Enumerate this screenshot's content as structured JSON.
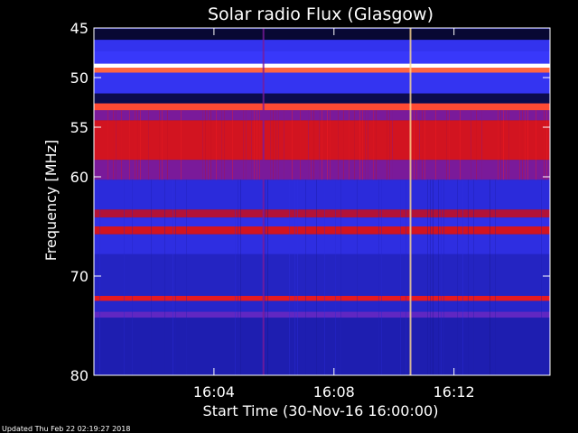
{
  "chart_data": {
    "type": "heatmap",
    "title": "Solar radio Flux (Glasgow)",
    "xlabel": "Start Time (30-Nov-16 16:00:00)",
    "ylabel": "Frequency [MHz]",
    "footer": "Updated Thu Feb 22 02:19:27 2018",
    "x_ticks": [
      "16:04",
      "16:08",
      "16:12"
    ],
    "x_tick_minutes": [
      4,
      8,
      12
    ],
    "xlim_minutes": [
      0,
      15.2
    ],
    "y_ticks": [
      45,
      50,
      55,
      60,
      70,
      80
    ],
    "ylim": [
      80,
      45
    ],
    "colormap": [
      "#000000",
      "#1a1aa0",
      "#2a2ad8",
      "#3a3aff",
      "#7a1a9a",
      "#c01020",
      "#ff2020",
      "#ffd070",
      "#ffffff"
    ],
    "background_level": 0.18,
    "bands": [
      {
        "freq": [
          45.1,
          46.2
        ],
        "level": 0.04
      },
      {
        "freq": [
          46.2,
          47.3
        ],
        "level": 0.32
      },
      {
        "freq": [
          47.3,
          48.6
        ],
        "level": 0.36
      },
      {
        "freq": [
          48.6,
          49.0
        ],
        "level": 1.0
      },
      {
        "freq": [
          49.0,
          49.5
        ],
        "level": 0.8
      },
      {
        "freq": [
          49.5,
          51.6
        ],
        "level": 0.33
      },
      {
        "freq": [
          51.6,
          52.6
        ],
        "level": 0.06
      },
      {
        "freq": [
          52.6,
          53.3
        ],
        "level": 0.78
      },
      {
        "freq": [
          53.3,
          54.3
        ],
        "level": 0.5
      },
      {
        "freq": [
          54.3,
          58.3
        ],
        "level": 0.66
      },
      {
        "freq": [
          58.3,
          60.3
        ],
        "level": 0.5
      },
      {
        "freq": [
          60.3,
          63.3
        ],
        "level": 0.26
      },
      {
        "freq": [
          63.3,
          64.1
        ],
        "level": 0.6
      },
      {
        "freq": [
          64.1,
          65.0
        ],
        "level": 0.3
      },
      {
        "freq": [
          65.0,
          65.8
        ],
        "level": 0.66
      },
      {
        "freq": [
          65.8,
          67.8
        ],
        "level": 0.28
      },
      {
        "freq": [
          67.8,
          72.0
        ],
        "level": 0.2
      },
      {
        "freq": [
          72.0,
          72.5
        ],
        "level": 0.7
      },
      {
        "freq": [
          72.5,
          73.6
        ],
        "level": 0.22
      },
      {
        "freq": [
          73.6,
          74.2
        ],
        "level": 0.45
      },
      {
        "freq": [
          74.2,
          80.0
        ],
        "level": 0.16
      }
    ],
    "spikes": [
      {
        "time_minutes": 10.55,
        "level": 0.9
      },
      {
        "time_minutes": 5.65,
        "level": 0.5
      }
    ]
  }
}
